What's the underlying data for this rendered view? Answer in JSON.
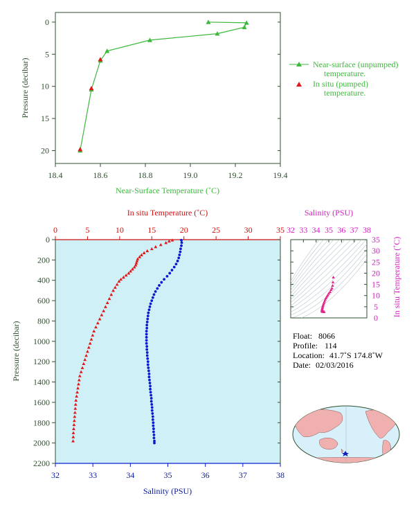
{
  "chart_data": [
    {
      "id": "near_surface",
      "type": "line",
      "xlabel": "Near-Surface Temperature (˚C)",
      "ylabel": "Pressure (decibar)",
      "xlim": [
        18.4,
        19.4
      ],
      "ylim": [
        22,
        -1.5
      ],
      "xticks": [
        "18.4",
        "18.6",
        "18.8",
        "19.0",
        "19.2",
        "19.4"
      ],
      "yticks": [
        "0",
        "5",
        "10",
        "15",
        "20"
      ],
      "legend_position": "right",
      "series": [
        {
          "name": "Near-surface (unpumped) temperature.",
          "legend_lines": [
            "Near-surface (unpumped)",
            "temperature."
          ],
          "color": "#3cb83c",
          "marker": "triangle",
          "points": [
            [
              19.08,
              0.0
            ],
            [
              19.25,
              0.1
            ],
            [
              19.24,
              0.8
            ],
            [
              19.12,
              1.8
            ],
            [
              18.82,
              2.8
            ],
            [
              18.63,
              4.5
            ],
            [
              18.6,
              6.0
            ],
            [
              18.56,
              10.5
            ],
            [
              18.51,
              20.0
            ]
          ]
        },
        {
          "name": "In situ (pumped) temperature.",
          "legend_lines": [
            "In situ (pumped)",
            "temperature."
          ],
          "color": "#e01818",
          "marker": "triangle",
          "points": [
            [
              18.6,
              5.8
            ],
            [
              18.56,
              10.3
            ],
            [
              18.51,
              19.8
            ]
          ]
        }
      ]
    },
    {
      "id": "profile",
      "type": "scatter",
      "top_xlabel": "In situ Temperature (˚C)",
      "bottom_xlabel": "Salinity (PSU)",
      "ylabel": "Pressure (decibar)",
      "temp_ticks": [
        "0",
        "5",
        "10",
        "15",
        "20",
        "25",
        "30",
        "35"
      ],
      "sal_ticks": [
        "32",
        "33",
        "34",
        "35",
        "36",
        "37",
        "38"
      ],
      "pressure_ticks": [
        "0",
        "200",
        "400",
        "600",
        "800",
        "1000",
        "1200",
        "1400",
        "1600",
        "1800",
        "2000",
        "2200"
      ],
      "templim": [
        0,
        35
      ],
      "sallim": [
        32,
        38
      ],
      "ylim": [
        0,
        2200
      ],
      "temperature_color": "#e01818",
      "salinity_color": "#0a1ad0",
      "background_color": "#d0f0f8",
      "temperature": [
        [
          18.2,
          5
        ],
        [
          17.7,
          15
        ],
        [
          17.2,
          30
        ],
        [
          16.4,
          50
        ],
        [
          15.6,
          70
        ],
        [
          15.0,
          90
        ],
        [
          14.3,
          110
        ],
        [
          13.8,
          130
        ],
        [
          13.4,
          150
        ],
        [
          13.1,
          170
        ],
        [
          12.8,
          190
        ],
        [
          12.7,
          210
        ],
        [
          12.6,
          230
        ],
        [
          12.5,
          250
        ],
        [
          12.3,
          270
        ],
        [
          12.0,
          290
        ],
        [
          11.7,
          310
        ],
        [
          11.4,
          330
        ],
        [
          11.0,
          350
        ],
        [
          10.6,
          370
        ],
        [
          10.2,
          390
        ],
        [
          9.9,
          410
        ],
        [
          9.6,
          440
        ],
        [
          9.3,
          470
        ],
        [
          9.0,
          500
        ],
        [
          8.7,
          540
        ],
        [
          8.4,
          580
        ],
        [
          8.1,
          620
        ],
        [
          7.8,
          660
        ],
        [
          7.5,
          700
        ],
        [
          7.2,
          740
        ],
        [
          6.9,
          780
        ],
        [
          6.6,
          820
        ],
        [
          6.3,
          860
        ],
        [
          6.0,
          900
        ],
        [
          5.8,
          940
        ],
        [
          5.6,
          980
        ],
        [
          5.4,
          1020
        ],
        [
          5.2,
          1060
        ],
        [
          5.0,
          1100
        ],
        [
          4.8,
          1140
        ],
        [
          4.6,
          1180
        ],
        [
          4.4,
          1220
        ],
        [
          4.2,
          1260
        ],
        [
          4.0,
          1300
        ],
        [
          3.8,
          1340
        ],
        [
          3.7,
          1380
        ],
        [
          3.6,
          1420
        ],
        [
          3.5,
          1460
        ],
        [
          3.4,
          1500
        ],
        [
          3.3,
          1540
        ],
        [
          3.2,
          1580
        ],
        [
          3.15,
          1620
        ],
        [
          3.1,
          1660
        ],
        [
          3.05,
          1700
        ],
        [
          3.0,
          1740
        ],
        [
          2.95,
          1780
        ],
        [
          2.9,
          1820
        ],
        [
          2.85,
          1860
        ],
        [
          2.8,
          1900
        ],
        [
          2.78,
          1940
        ],
        [
          2.75,
          1980
        ]
      ],
      "salinity": [
        [
          35.36,
          5
        ],
        [
          35.37,
          30
        ],
        [
          35.36,
          60
        ],
        [
          35.34,
          90
        ],
        [
          35.33,
          120
        ],
        [
          35.31,
          150
        ],
        [
          35.29,
          180
        ],
        [
          35.26,
          210
        ],
        [
          35.22,
          240
        ],
        [
          35.17,
          270
        ],
        [
          35.11,
          300
        ],
        [
          35.05,
          330
        ],
        [
          34.98,
          360
        ],
        [
          34.9,
          390
        ],
        [
          34.83,
          420
        ],
        [
          34.77,
          450
        ],
        [
          34.72,
          480
        ],
        [
          34.67,
          510
        ],
        [
          34.63,
          540
        ],
        [
          34.6,
          570
        ],
        [
          34.57,
          600
        ],
        [
          34.54,
          630
        ],
        [
          34.52,
          660
        ],
        [
          34.5,
          690
        ],
        [
          34.48,
          720
        ],
        [
          34.47,
          750
        ],
        [
          34.46,
          780
        ],
        [
          34.45,
          810
        ],
        [
          34.44,
          840
        ],
        [
          34.44,
          870
        ],
        [
          34.43,
          900
        ],
        [
          34.43,
          930
        ],
        [
          34.43,
          960
        ],
        [
          34.43,
          990
        ],
        [
          34.43,
          1020
        ],
        [
          34.44,
          1050
        ],
        [
          34.44,
          1080
        ],
        [
          34.45,
          1110
        ],
        [
          34.45,
          1140
        ],
        [
          34.46,
          1170
        ],
        [
          34.47,
          1200
        ],
        [
          34.47,
          1230
        ],
        [
          34.48,
          1260
        ],
        [
          34.49,
          1290
        ],
        [
          34.5,
          1320
        ],
        [
          34.5,
          1350
        ],
        [
          34.51,
          1380
        ],
        [
          34.52,
          1410
        ],
        [
          34.53,
          1440
        ],
        [
          34.53,
          1470
        ],
        [
          34.54,
          1500
        ],
        [
          34.55,
          1530
        ],
        [
          34.56,
          1560
        ],
        [
          34.56,
          1590
        ],
        [
          34.57,
          1620
        ],
        [
          34.58,
          1650
        ],
        [
          34.58,
          1680
        ],
        [
          34.59,
          1710
        ],
        [
          34.6,
          1740
        ],
        [
          34.6,
          1770
        ],
        [
          34.61,
          1800
        ],
        [
          34.61,
          1830
        ],
        [
          34.62,
          1860
        ],
        [
          34.62,
          1890
        ],
        [
          34.63,
          1920
        ],
        [
          34.63,
          1950
        ],
        [
          34.64,
          1980
        ],
        [
          34.64,
          2000
        ]
      ]
    },
    {
      "id": "ts_diagram",
      "type": "scatter",
      "top_xlabel": "Salinity (PSU)",
      "right_ylabel": "In situ Temperature (˚C)",
      "xticks": [
        "32",
        "33",
        "34",
        "35",
        "36",
        "37",
        "38"
      ],
      "yticks": [
        "0",
        "5",
        "10",
        "15",
        "20",
        "25",
        "30",
        "35"
      ],
      "xlim": [
        32,
        38
      ],
      "ylim": [
        0,
        35
      ],
      "color": "#e0288c",
      "points": [
        [
          35.36,
          18.2
        ],
        [
          35.33,
          16.0
        ],
        [
          35.3,
          14.5
        ],
        [
          35.25,
          13.3
        ],
        [
          35.18,
          12.6
        ],
        [
          35.1,
          11.7
        ],
        [
          35.0,
          11.0
        ],
        [
          34.92,
          10.2
        ],
        [
          34.85,
          9.6
        ],
        [
          34.78,
          8.9
        ],
        [
          34.72,
          8.2
        ],
        [
          34.67,
          7.5
        ],
        [
          34.62,
          6.8
        ],
        [
          34.58,
          6.2
        ],
        [
          34.55,
          5.6
        ],
        [
          34.52,
          5.1
        ],
        [
          34.5,
          4.6
        ],
        [
          34.48,
          4.2
        ],
        [
          34.47,
          3.8
        ],
        [
          34.46,
          3.5
        ],
        [
          34.46,
          3.2
        ],
        [
          34.47,
          3.0
        ],
        [
          34.5,
          2.85
        ],
        [
          34.55,
          2.8
        ],
        [
          34.6,
          2.75
        ],
        [
          34.64,
          2.75
        ]
      ]
    }
  ],
  "info": {
    "float_label": "Float:",
    "float_value": "8066",
    "profile_label": "Profile:",
    "profile_value": "114",
    "location_label": "Location:",
    "location_value": "41.7˚S  174.8˚W",
    "date_label": "Date:",
    "date_value": "02/03/2016"
  },
  "map": {
    "ocean_color": "#d8f0fa",
    "land_color": "#f0b0b0",
    "float_marker_color": "#1020c0"
  }
}
